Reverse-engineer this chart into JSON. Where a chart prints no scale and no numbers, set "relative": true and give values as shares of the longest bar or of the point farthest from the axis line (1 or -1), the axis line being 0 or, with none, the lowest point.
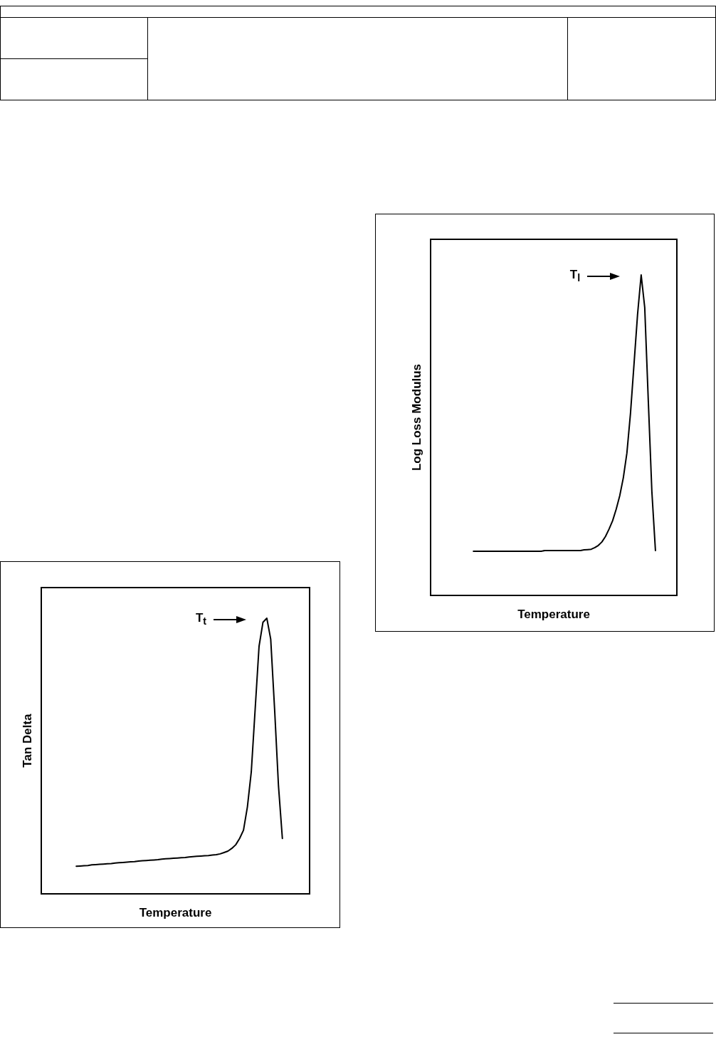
{
  "chart_data": [
    {
      "type": "line",
      "relative": true,
      "xlabel": "Temperature",
      "ylabel": "Log Loss Modulus",
      "color": "#000000",
      "line_style": "solid",
      "categories": [
        null,
        null,
        null,
        null,
        null,
        null,
        null,
        null,
        null,
        null,
        null,
        null,
        null,
        null,
        null,
        null,
        null,
        null,
        null,
        null,
        null,
        null,
        null,
        null,
        null,
        null,
        null,
        null,
        null,
        null,
        null,
        null,
        null,
        null,
        null,
        null,
        null,
        null,
        null,
        null,
        null,
        null,
        null,
        null,
        null,
        null,
        null,
        null,
        null,
        null,
        null,
        null,
        null,
        null,
        null,
        null,
        null,
        null,
        null,
        null,
        null,
        null,
        null,
        null,
        null,
        null,
        null,
        null,
        null,
        null
      ],
      "values": [
        null,
        null,
        null,
        null,
        null,
        null,
        null,
        null,
        null,
        null,
        null,
        null,
        0.138,
        0.138,
        0.138,
        0.138,
        0.138,
        0.138,
        0.138,
        0.138,
        0.138,
        0.138,
        0.138,
        0.138,
        0.138,
        0.138,
        0.138,
        0.138,
        0.138,
        0.138,
        0.138,
        0.138,
        0.14,
        0.14,
        0.14,
        0.14,
        0.14,
        0.14,
        0.14,
        0.14,
        0.14,
        0.14,
        0.14,
        0.142,
        0.143,
        0.144,
        0.149,
        0.156,
        0.167,
        0.184,
        0.207,
        0.233,
        0.269,
        0.311,
        0.367,
        0.444,
        0.567,
        0.722,
        0.878,
        1,
        0.898,
        0.607,
        0.324,
        0.14,
        null,
        null,
        null,
        null,
        null,
        null
      ],
      "annotations": [
        "T$_{l}$"
      ]
    },
    {
      "type": "line",
      "relative": true,
      "xlabel": "Temperature",
      "ylabel": "Tan Delta",
      "color": "#000000",
      "line_style": "solid",
      "categories": [
        null,
        null,
        null,
        null,
        null,
        null,
        null,
        null,
        null,
        null,
        null,
        null,
        null,
        null,
        null,
        null,
        null,
        null,
        null,
        null,
        null,
        null,
        null,
        null,
        null,
        null,
        null,
        null,
        null,
        null,
        null,
        null,
        null,
        null,
        null,
        null,
        null,
        null,
        null,
        null,
        null,
        null,
        null,
        null,
        null,
        null,
        null,
        null,
        null,
        null,
        null,
        null,
        null,
        null,
        null,
        null,
        null,
        null,
        null,
        null,
        null,
        null,
        null,
        null,
        null,
        null,
        null,
        null,
        null,
        null
      ],
      "values": [
        null,
        null,
        null,
        null,
        null,
        null,
        null,
        null,
        null,
        0.1,
        0.101,
        0.102,
        0.103,
        0.105,
        0.106,
        0.107,
        0.108,
        0.109,
        0.11,
        0.112,
        0.113,
        0.114,
        0.115,
        0.116,
        0.117,
        0.119,
        0.12,
        0.121,
        0.122,
        0.123,
        0.124,
        0.126,
        0.127,
        0.128,
        0.129,
        0.13,
        0.131,
        0.132,
        0.134,
        0.135,
        0.136,
        0.137,
        0.138,
        0.139,
        0.141,
        0.142,
        0.145,
        0.15,
        0.155,
        0.165,
        0.178,
        0.201,
        0.231,
        0.315,
        0.442,
        0.67,
        0.898,
        0.985,
        1,
        0.924,
        0.67,
        0.391,
        0.201,
        null,
        null,
        null,
        null,
        null,
        null,
        null
      ],
      "annotations": [
        "T$_{t}$"
      ]
    }
  ]
}
